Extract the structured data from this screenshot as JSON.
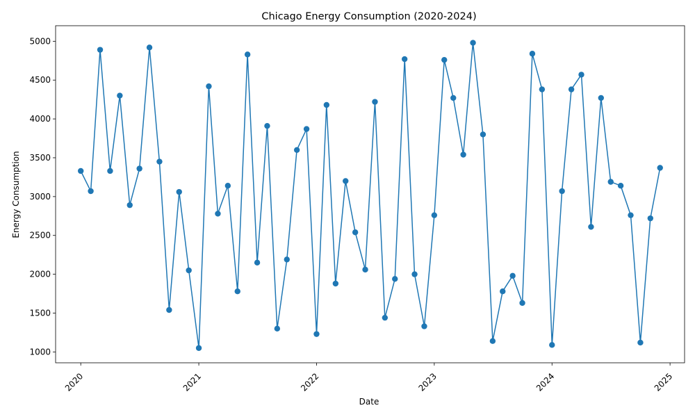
{
  "chart_data": {
    "type": "line",
    "title": "Chicago Energy Consumption (2020-2024)",
    "xlabel": "Date",
    "ylabel": "Energy Consumption",
    "x_ticks": [
      "2020",
      "2021",
      "2022",
      "2023",
      "2024",
      "2025"
    ],
    "y_ticks": [
      1000,
      1500,
      2000,
      2500,
      3000,
      3500,
      4000,
      4500,
      5000
    ],
    "xlim": [
      "2019-10-15",
      "2025-02-15"
    ],
    "ylim": [
      860,
      5200
    ],
    "grid": false,
    "color": "#1f77b4",
    "marker": "circle",
    "series": [
      {
        "x": [
          "2020-01-01",
          "2020-02-01",
          "2020-03-01",
          "2020-04-01",
          "2020-05-01",
          "2020-06-01",
          "2020-07-01",
          "2020-08-01",
          "2020-09-01",
          "2020-10-01",
          "2020-11-01",
          "2020-12-01",
          "2021-01-01",
          "2021-02-01",
          "2021-03-01",
          "2021-04-01",
          "2021-05-01",
          "2021-06-01",
          "2021-07-01",
          "2021-08-01",
          "2021-09-01",
          "2021-10-01",
          "2021-11-01",
          "2021-12-01",
          "2022-01-01",
          "2022-02-01",
          "2022-03-01",
          "2022-04-01",
          "2022-05-01",
          "2022-06-01",
          "2022-07-01",
          "2022-08-01",
          "2022-09-01",
          "2022-10-01",
          "2022-11-01",
          "2022-12-01",
          "2023-01-01",
          "2023-02-01",
          "2023-03-01",
          "2023-04-01",
          "2023-05-01",
          "2023-06-01",
          "2023-07-01",
          "2023-08-01",
          "2023-09-01",
          "2023-10-01",
          "2023-11-01",
          "2023-12-01",
          "2024-01-01",
          "2024-02-01",
          "2024-03-01",
          "2024-04-01",
          "2024-05-01",
          "2024-06-01",
          "2024-07-01",
          "2024-08-01",
          "2024-09-01",
          "2024-10-01",
          "2024-11-01",
          "2024-12-01"
        ],
        "y": [
          3330,
          3070,
          4890,
          3330,
          4300,
          2890,
          3360,
          4920,
          3450,
          1540,
          3060,
          2050,
          1050,
          4420,
          2780,
          3140,
          1780,
          4830,
          2150,
          3910,
          1300,
          2190,
          3600,
          3870,
          1230,
          4180,
          1880,
          3200,
          2540,
          2060,
          4220,
          1440,
          1940,
          4770,
          2000,
          1330,
          2760,
          4760,
          4270,
          3540,
          4980,
          3800,
          1140,
          1780,
          1980,
          1630,
          4840,
          4380,
          1090,
          3070,
          4380,
          4570,
          2610,
          4270,
          3190,
          3140,
          2760,
          1120,
          2720,
          3370
        ]
      }
    ]
  }
}
